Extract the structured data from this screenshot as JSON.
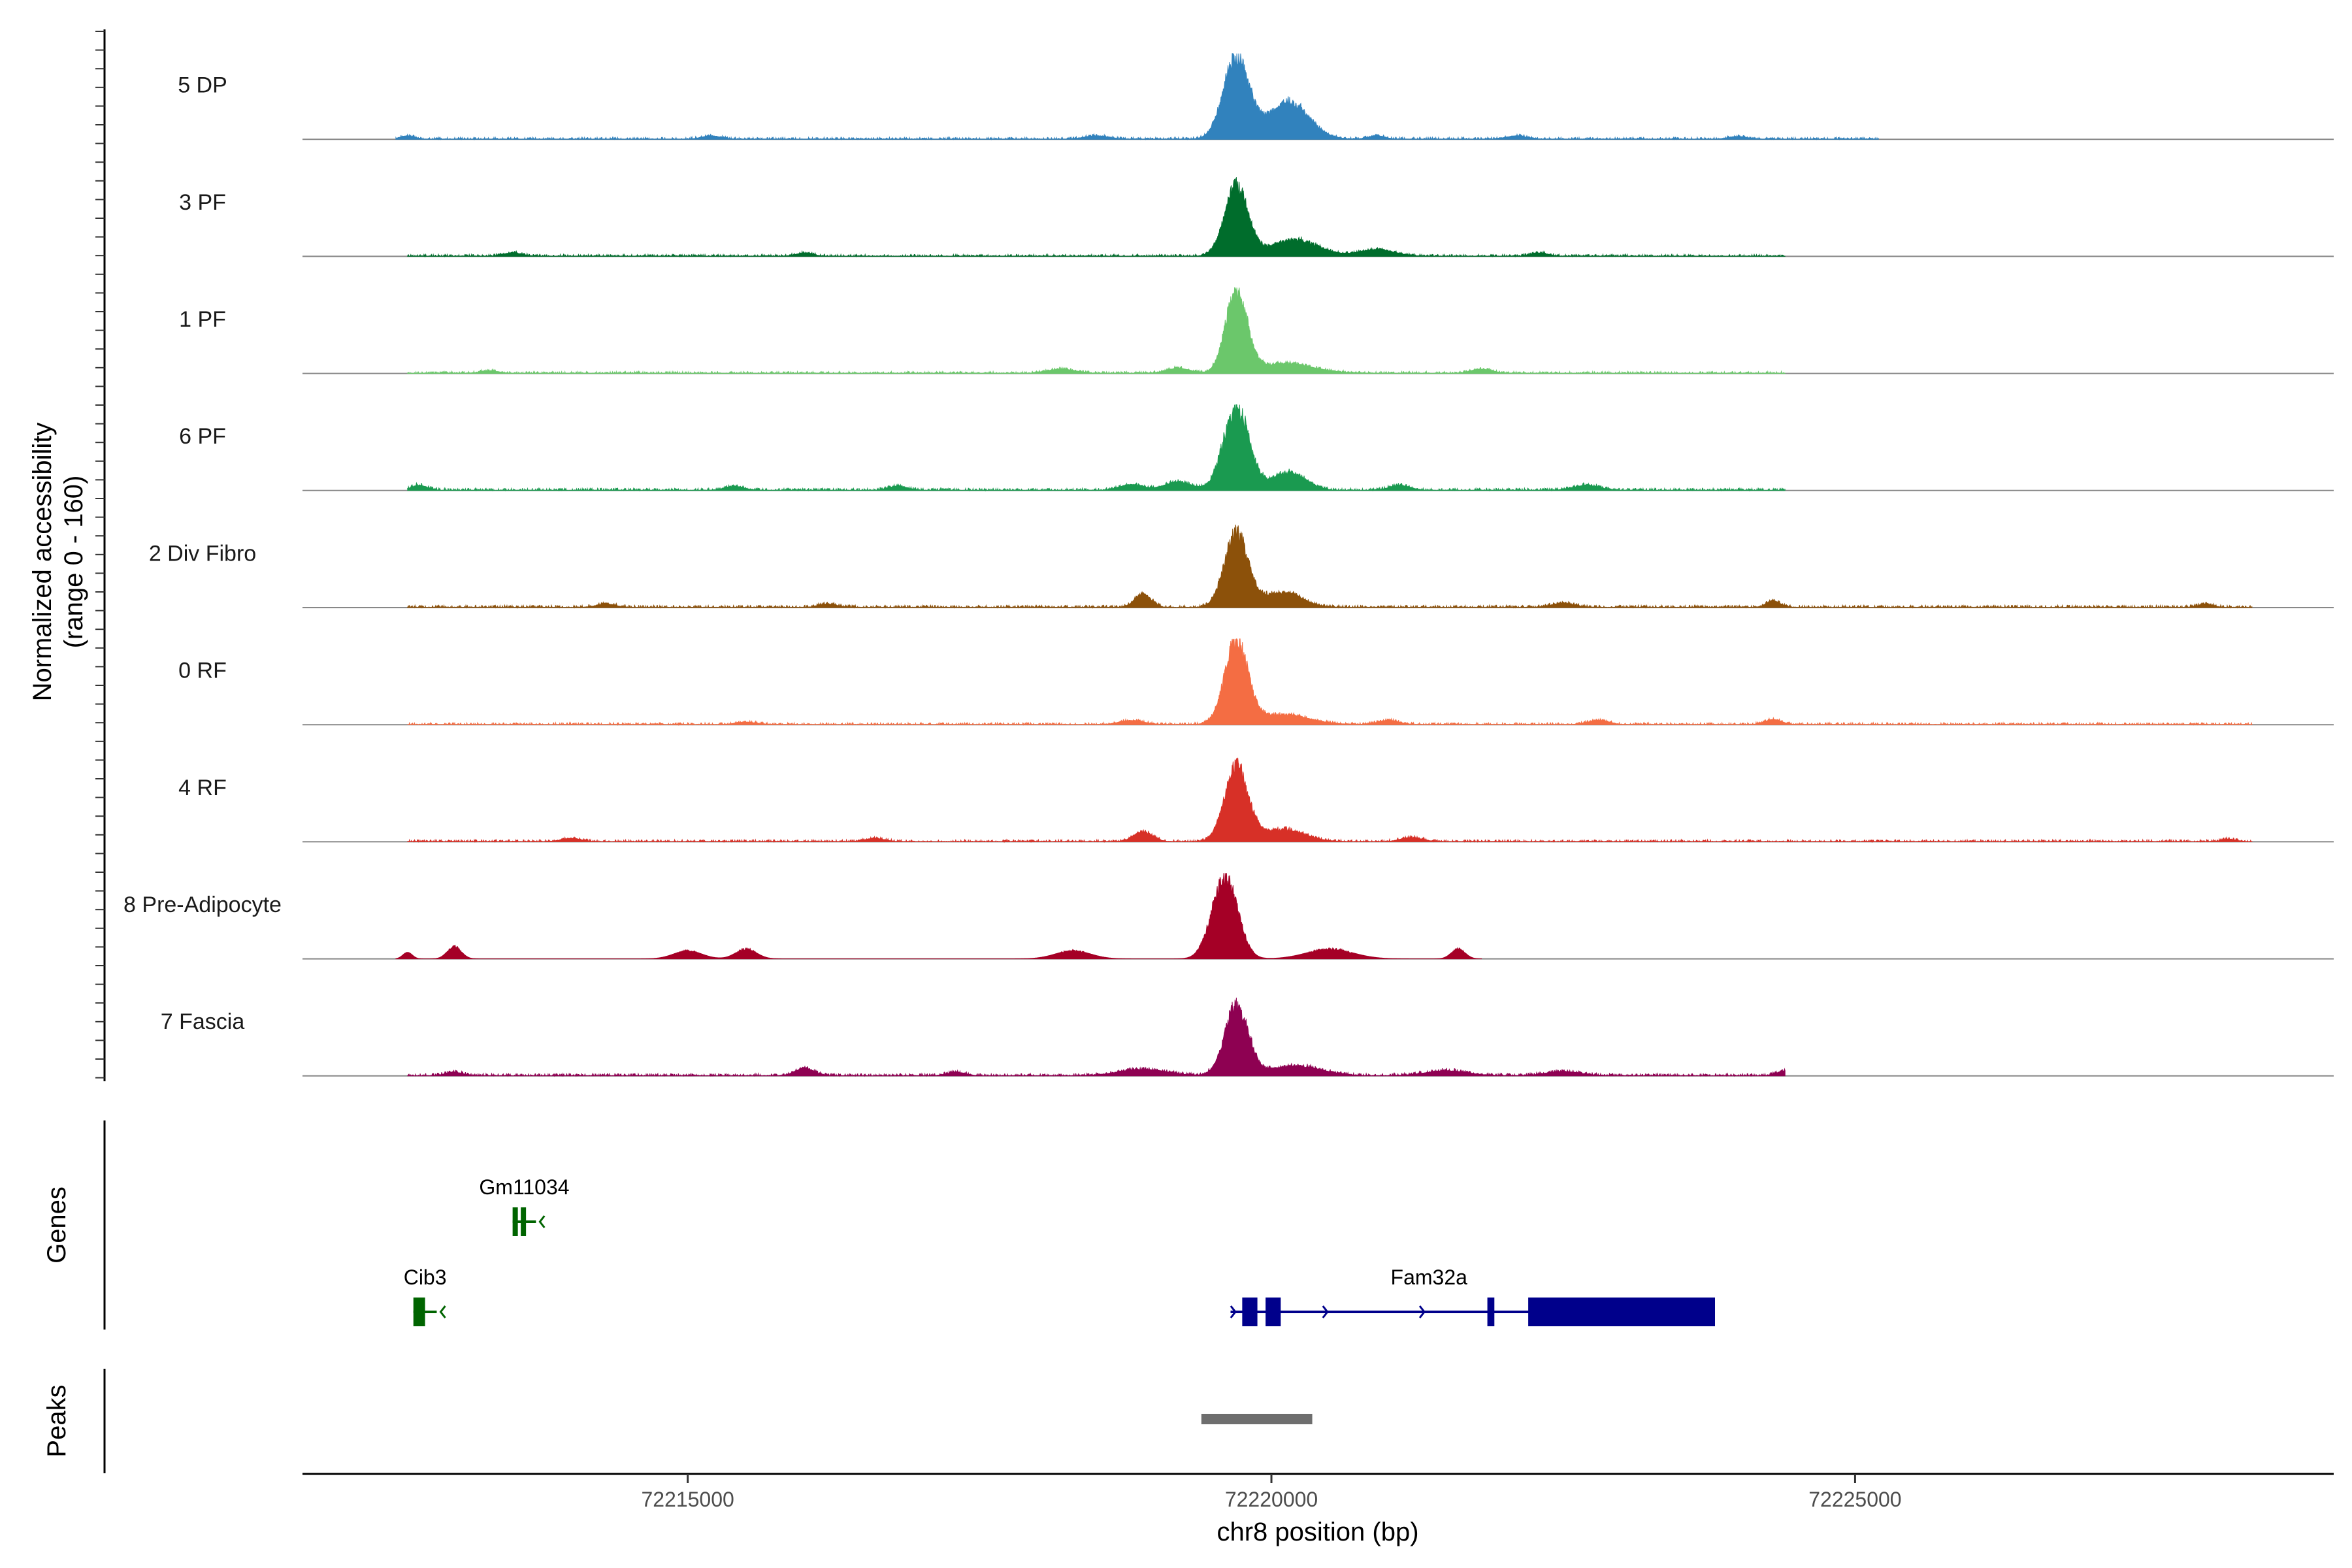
{
  "chart_data": {
    "type": "area",
    "title": "",
    "chromosome": "chr8",
    "xlabel": "chr8 position (bp)",
    "xlim": [
      72211700,
      72229100
    ],
    "x_ticks": [
      72215000,
      72220000,
      72225000
    ],
    "x_tick_labels": [
      "72215000",
      "72220000",
      "72225000"
    ],
    "ylabel_line1": "Normalized accessibility",
    "ylabel_line2": "(range 0 - 160)",
    "y_range": [
      0,
      160
    ],
    "tracks": [
      {
        "name": "5 DP",
        "color": "#3182BD",
        "peaks": [
          [
            72219700,
            1.0,
            110
          ],
          [
            72220150,
            0.45,
            170
          ],
          [
            72212600,
            0.04,
            60
          ],
          [
            72215200,
            0.04,
            80
          ],
          [
            72218500,
            0.04,
            100
          ],
          [
            72220900,
            0.04,
            70
          ],
          [
            72222100,
            0.04,
            90
          ],
          [
            72224000,
            0.03,
            80
          ]
        ],
        "noise": 0.025,
        "extent": [
          72212500,
          72225200
        ]
      },
      {
        "name": "3 PF",
        "color": "#006D2C",
        "peaks": [
          [
            72219700,
            0.85,
            100
          ],
          [
            72220200,
            0.2,
            200
          ],
          [
            72220900,
            0.08,
            150
          ],
          [
            72216000,
            0.04,
            70
          ],
          [
            72213500,
            0.04,
            80
          ],
          [
            72222300,
            0.04,
            70
          ]
        ],
        "noise": 0.025,
        "extent": [
          72212600,
          72224400
        ]
      },
      {
        "name": "1 PF",
        "color": "#6BC76B",
        "peaks": [
          [
            72219700,
            1.0,
            90
          ],
          [
            72220100,
            0.12,
            250
          ],
          [
            72219200,
            0.06,
            100
          ],
          [
            72218200,
            0.05,
            120
          ],
          [
            72221800,
            0.05,
            90
          ],
          [
            72213300,
            0.03,
            80
          ]
        ],
        "noise": 0.025,
        "extent": [
          72212600,
          72224400
        ]
      },
      {
        "name": "6 PF",
        "color": "#1A9A50",
        "peaks": [
          [
            72219700,
            1.0,
            110
          ],
          [
            72220150,
            0.22,
            140
          ],
          [
            72219200,
            0.1,
            120
          ],
          [
            72218800,
            0.07,
            100
          ],
          [
            72221100,
            0.06,
            90
          ],
          [
            72222700,
            0.06,
            110
          ],
          [
            72212700,
            0.06,
            70
          ],
          [
            72215400,
            0.05,
            80
          ],
          [
            72216800,
            0.05,
            80
          ]
        ],
        "noise": 0.03,
        "extent": [
          72212600,
          72224400
        ]
      },
      {
        "name": "2 Div Fibro",
        "color": "#8C510A",
        "peaks": [
          [
            72219700,
            0.9,
            100
          ],
          [
            72220100,
            0.18,
            160
          ],
          [
            72218900,
            0.16,
            70
          ],
          [
            72224300,
            0.08,
            60
          ],
          [
            72222500,
            0.05,
            100
          ],
          [
            72216200,
            0.04,
            80
          ],
          [
            72214300,
            0.04,
            80
          ],
          [
            72228000,
            0.04,
            60
          ]
        ],
        "noise": 0.03,
        "extent": [
          72212600,
          72228400
        ]
      },
      {
        "name": "0 RF",
        "color": "#F46D43",
        "peaks": [
          [
            72219700,
            1.0,
            100
          ],
          [
            72220100,
            0.12,
            220
          ],
          [
            72224300,
            0.06,
            70
          ],
          [
            72222800,
            0.05,
            90
          ],
          [
            72221000,
            0.05,
            90
          ],
          [
            72218800,
            0.05,
            100
          ],
          [
            72215500,
            0.03,
            80
          ]
        ],
        "noise": 0.025,
        "extent": [
          72212600,
          72228400
        ]
      },
      {
        "name": "4 RF",
        "color": "#D73027",
        "peaks": [
          [
            72219700,
            0.9,
            100
          ],
          [
            72220100,
            0.15,
            180
          ],
          [
            72218900,
            0.12,
            80
          ],
          [
            72221200,
            0.05,
            90
          ],
          [
            72214000,
            0.04,
            80
          ],
          [
            72216600,
            0.04,
            80
          ],
          [
            72228200,
            0.03,
            60
          ]
        ],
        "noise": 0.025,
        "extent": [
          72212600,
          72228400
        ]
      },
      {
        "name": "8 Pre-Adipocyte",
        "color": "#A50026",
        "peaks": [
          [
            72219600,
            1.0,
            110
          ],
          [
            72213000,
            0.15,
            60
          ],
          [
            72215000,
            0.1,
            120
          ],
          [
            72215500,
            0.12,
            90
          ],
          [
            72218300,
            0.1,
            150
          ],
          [
            72220500,
            0.12,
            200
          ],
          [
            72221600,
            0.12,
            60
          ],
          [
            72212600,
            0.08,
            40
          ]
        ],
        "noise": 0.0,
        "extent": [
          72212500,
          72221800
        ]
      },
      {
        "name": "7 Fascia",
        "color": "#8E0152",
        "peaks": [
          [
            72219700,
            0.85,
            100
          ],
          [
            72220200,
            0.12,
            220
          ],
          [
            72218900,
            0.08,
            200
          ],
          [
            72216000,
            0.09,
            80
          ],
          [
            72224400,
            0.06,
            70
          ],
          [
            72213000,
            0.04,
            80
          ],
          [
            72221500,
            0.06,
            180
          ],
          [
            72222500,
            0.05,
            150
          ],
          [
            72217300,
            0.04,
            80
          ]
        ],
        "noise": 0.03,
        "extent": [
          72212600,
          72224400
        ]
      }
    ],
    "genes": {
      "axis_label": "Genes",
      "items": [
        {
          "name": "Gm11034",
          "start": 72213500,
          "end": 72213700,
          "strand": "-",
          "color": "#006400",
          "row": 0,
          "exons": [
            [
              72213500,
              72213530
            ],
            [
              72213570,
              72213590
            ]
          ]
        },
        {
          "name": "Cib3",
          "start": 72212650,
          "end": 72212850,
          "strand": "-",
          "color": "#006400",
          "row": 1,
          "exons": [
            [
              72212650,
              72212750
            ]
          ]
        },
        {
          "name": "Fam32a",
          "start": 72219650,
          "end": 72223800,
          "strand": "+",
          "color": "#00008B",
          "row": 1,
          "exons": [
            [
              72219750,
              72219880
            ],
            [
              72219950,
              72220080
            ],
            [
              72221850,
              72221910
            ],
            [
              72222200,
              72223800
            ]
          ]
        }
      ]
    },
    "peaks_track": {
      "axis_label": "Peaks",
      "ranges": [
        [
          72219400,
          72220350
        ]
      ],
      "color": "#6E6E6E"
    }
  }
}
